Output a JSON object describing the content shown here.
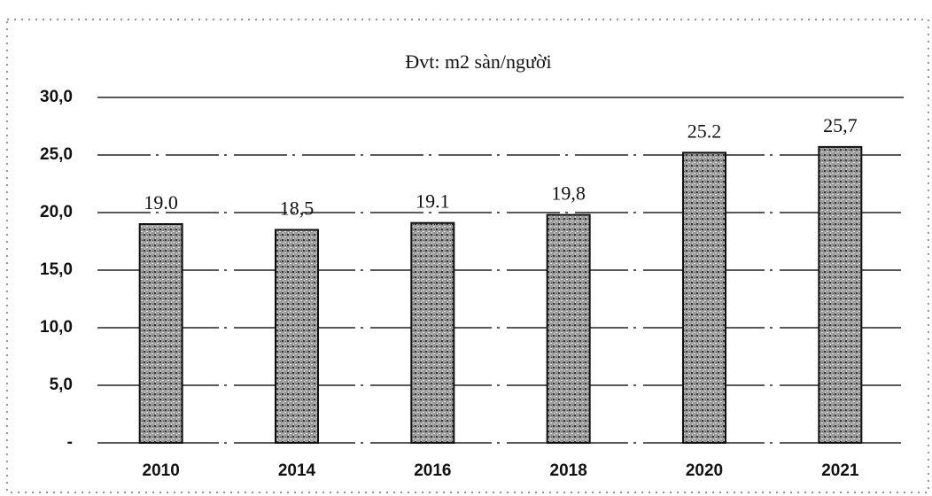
{
  "chart_data": {
    "type": "bar",
    "subtitle": "Đvt: m2 sàn/người",
    "categories": [
      "2010",
      "2014",
      "2016",
      "2018",
      "2020",
      "2021"
    ],
    "values": [
      19.0,
      18.5,
      19.1,
      19.8,
      25.2,
      25.7
    ],
    "value_labels": [
      "19.0",
      "18,5",
      "19.1",
      "19,8",
      "25.2",
      "25,7"
    ],
    "color": "#8a8a8a",
    "ylim": [
      0,
      30
    ],
    "yticks": [
      {
        "value": 0,
        "label": "-"
      },
      {
        "value": 5,
        "label": "5,0"
      },
      {
        "value": 10,
        "label": "10,0"
      },
      {
        "value": 15,
        "label": "15,0"
      },
      {
        "value": 20,
        "label": "20,0"
      },
      {
        "value": 25,
        "label": "25,0"
      },
      {
        "value": 30,
        "label": "30,0"
      }
    ],
    "grid": true
  }
}
